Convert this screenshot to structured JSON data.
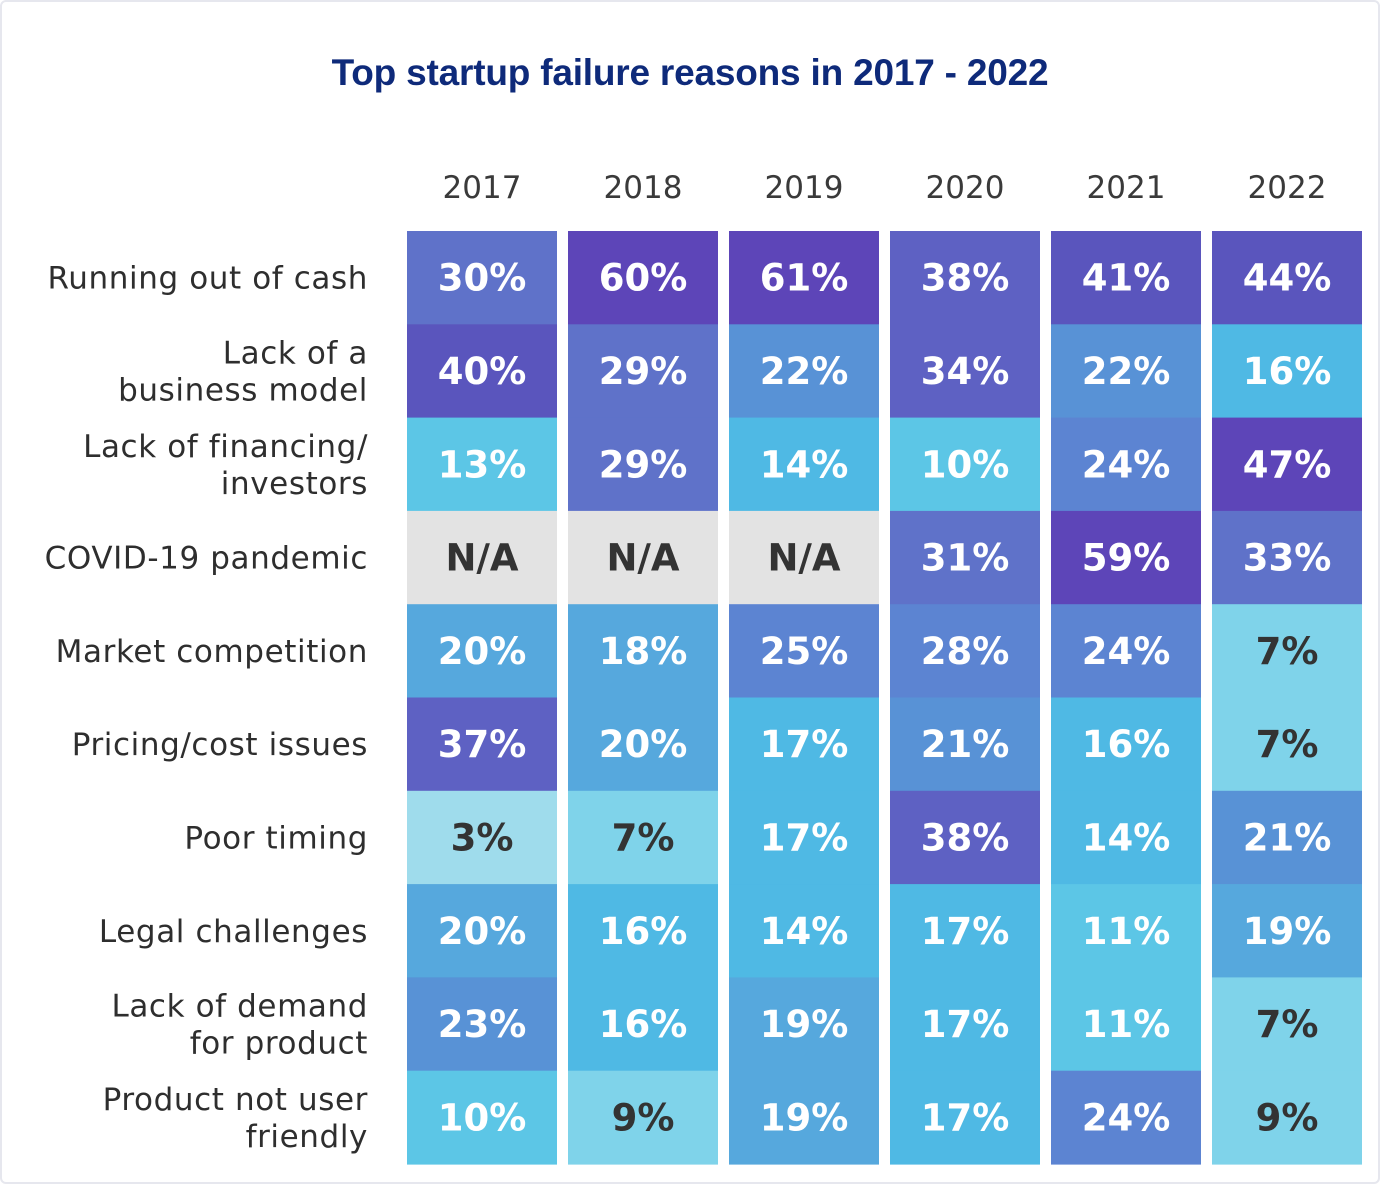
{
  "chart_data": {
    "type": "heatmap",
    "title": "Top startup failure reasons in 2017 - 2022",
    "columns": [
      "2017",
      "2018",
      "2019",
      "2020",
      "2021",
      "2022"
    ],
    "rows": [
      {
        "label_lines": [
          "Running out of cash"
        ],
        "values": [
          "30%",
          "60%",
          "61%",
          "38%",
          "41%",
          "44%"
        ]
      },
      {
        "label_lines": [
          "Lack of a",
          "business model"
        ],
        "values": [
          "40%",
          "29%",
          "22%",
          "34%",
          "22%",
          "16%"
        ]
      },
      {
        "label_lines": [
          "Lack of financing/",
          "investors"
        ],
        "values": [
          "13%",
          "29%",
          "14%",
          "10%",
          "24%",
          "47%"
        ]
      },
      {
        "label_lines": [
          "COVID-19 pandemic"
        ],
        "values": [
          "N/A",
          "N/A",
          "N/A",
          "31%",
          "59%",
          "33%"
        ]
      },
      {
        "label_lines": [
          "Market competition"
        ],
        "values": [
          "20%",
          "18%",
          "25%",
          "28%",
          "24%",
          "7%"
        ]
      },
      {
        "label_lines": [
          "Pricing/cost issues"
        ],
        "values": [
          "37%",
          "20%",
          "17%",
          "21%",
          "16%",
          "7%"
        ]
      },
      {
        "label_lines": [
          "Poor timing"
        ],
        "values": [
          "3%",
          "7%",
          "17%",
          "38%",
          "14%",
          "21%"
        ]
      },
      {
        "label_lines": [
          "Legal challenges"
        ],
        "values": [
          "20%",
          "16%",
          "14%",
          "17%",
          "11%",
          "19%"
        ]
      },
      {
        "label_lines": [
          "Lack of demand",
          "for product"
        ],
        "values": [
          "23%",
          "16%",
          "19%",
          "17%",
          "11%",
          "7%"
        ]
      },
      {
        "label_lines": [
          "Product not user",
          "friendly"
        ],
        "values": [
          "10%",
          "9%",
          "19%",
          "17%",
          "24%",
          "9%"
        ]
      }
    ],
    "legend": "none"
  },
  "colors": {
    "title": "#0e2a7a",
    "na_cell": "#e3e3e3",
    "na_text": "#333333",
    "light_text": "#333333",
    "white_text": "#ffffff",
    "scale": [
      {
        "min": 0,
        "color": "#9fdcec"
      },
      {
        "min": 7,
        "color": "#7fd3ea"
      },
      {
        "min": 10,
        "color": "#5cc6e6"
      },
      {
        "min": 14,
        "color": "#4fb9e4"
      },
      {
        "min": 18,
        "color": "#56a8dd"
      },
      {
        "min": 21,
        "color": "#5892d6"
      },
      {
        "min": 24,
        "color": "#5c84d2"
      },
      {
        "min": 29,
        "color": "#5f72c9"
      },
      {
        "min": 34,
        "color": "#5e61c3"
      },
      {
        "min": 39,
        "color": "#5a55bd"
      },
      {
        "min": 45,
        "color": "#5d45b8"
      }
    ]
  }
}
